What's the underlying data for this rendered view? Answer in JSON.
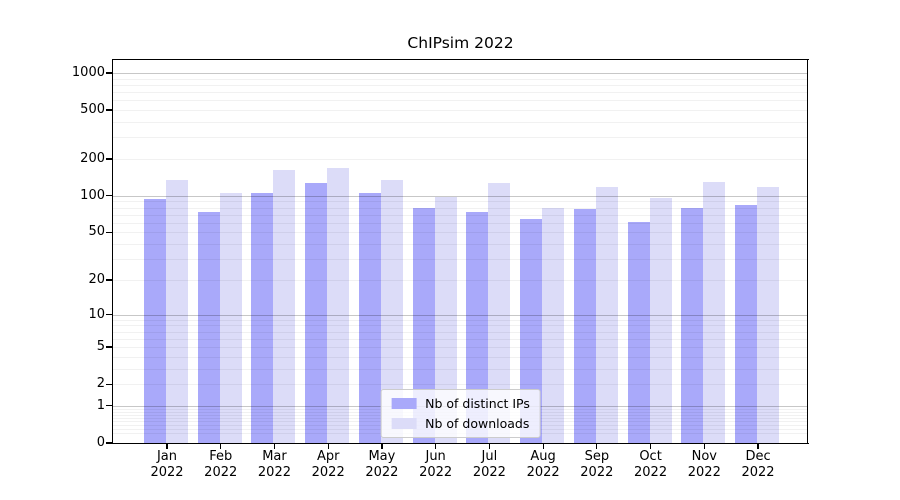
{
  "chart_data": {
    "type": "bar",
    "title": "ChIPsim 2022",
    "categories": [
      "Jan",
      "Feb",
      "Mar",
      "Apr",
      "May",
      "Jun",
      "Jul",
      "Aug",
      "Sep",
      "Oct",
      "Nov",
      "Dec"
    ],
    "xtick_year": "2022",
    "series": [
      {
        "name": "Nb of distinct IPs",
        "color": "#a9a9fa",
        "values": [
          95,
          73,
          105,
          127,
          106,
          79,
          74,
          64,
          78,
          61,
          79,
          84
        ]
      },
      {
        "name": "Nb of downloads",
        "color": "#dcdcf8",
        "values": [
          135,
          105,
          163,
          170,
          135,
          97,
          128,
          80,
          118,
          96,
          131,
          118
        ]
      }
    ],
    "yscale": "log1p",
    "yticks": [
      0,
      1,
      2,
      5,
      10,
      20,
      50,
      100,
      200,
      500,
      1000
    ],
    "ylim": [
      0,
      1275
    ],
    "grid": true,
    "legend_position": "lower center",
    "axis_color": "#000000",
    "major_gridline_values": [
      1,
      10,
      100,
      1000
    ],
    "background_color": "#ffffff"
  }
}
